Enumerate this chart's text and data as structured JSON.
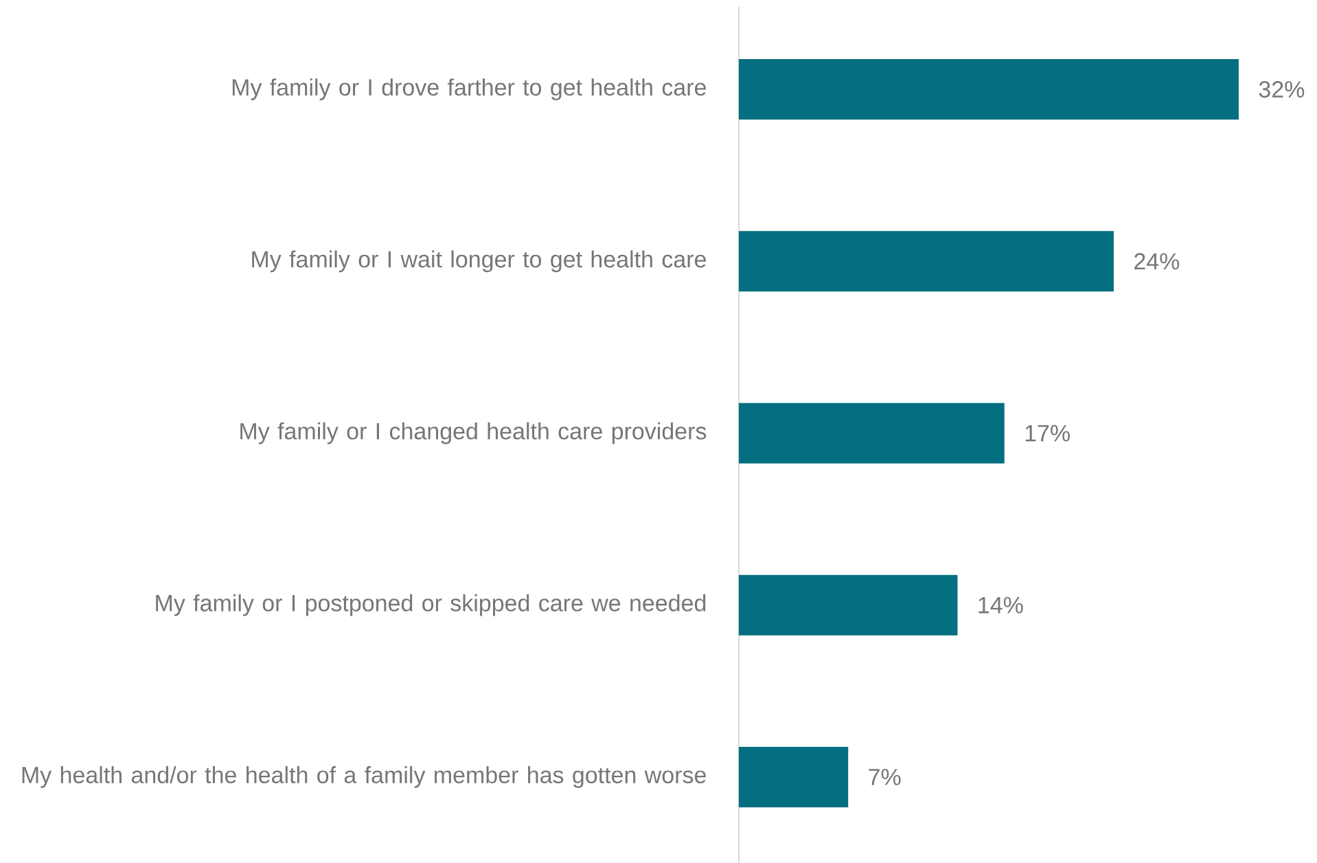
{
  "chart_data": {
    "type": "bar",
    "orientation": "horizontal",
    "color": "#046f80",
    "categories": [
      "My family or I drove farther to get health care",
      "My family or I wait longer to get health care",
      "My family or I changed health care providers",
      "My family or I postponed or skipped care we needed",
      "My health and/or the health of a family member has gotten worse"
    ],
    "values": [
      32,
      24,
      17,
      14,
      7
    ],
    "value_labels": [
      "32%",
      "24%",
      "17%",
      "14%",
      "7%"
    ]
  }
}
